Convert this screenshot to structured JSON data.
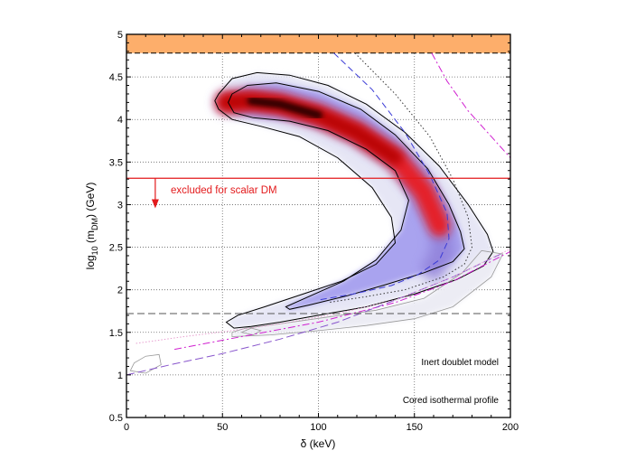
{
  "chart_data": {
    "type": "contour",
    "title": "",
    "xlabel": "δ (keV)",
    "ylabel_parts": {
      "pre": "log",
      "sub1": "10",
      "mid": " (m",
      "sub2": "DM",
      "post": ") (GeV)"
    },
    "xlim": [
      0,
      200
    ],
    "ylim": [
      0.5,
      5
    ],
    "xticks": [
      "0",
      "50",
      "100",
      "150",
      "200"
    ],
    "xtick_values": [
      0,
      50,
      100,
      150,
      200
    ],
    "yticks": [
      "0.5",
      "1",
      "1.5",
      "2",
      "2.5",
      "3",
      "3.5",
      "4",
      "4.5",
      "5"
    ],
    "ytick_values": [
      0.5,
      1,
      1.5,
      2,
      2.5,
      3,
      3.5,
      4,
      4.5,
      5
    ],
    "grid": true,
    "excluded_band": {
      "ymin": 4.78,
      "ymax": 5.0,
      "color": "#fdae6b"
    },
    "scalar_limit": {
      "y": 3.31,
      "label": "excluded for scalar DM",
      "arrow_x": 15,
      "arrow_to_y": 3.0,
      "color": "#e31a1c"
    },
    "lower_dashed_line": {
      "y": 1.72
    },
    "annotations": [
      "Inert doublet model",
      "Cored isothermal profile"
    ],
    "contours": {
      "outer": [
        [
          48,
          4.3
        ],
        [
          55,
          4.48
        ],
        [
          68,
          4.55
        ],
        [
          85,
          4.52
        ],
        [
          105,
          4.4
        ],
        [
          125,
          4.18
        ],
        [
          145,
          3.85
        ],
        [
          163,
          3.45
        ],
        [
          178,
          3.0
        ],
        [
          188,
          2.65
        ],
        [
          191,
          2.45
        ],
        [
          186,
          2.28
        ],
        [
          172,
          2.12
        ],
        [
          150,
          1.95
        ],
        [
          125,
          1.8
        ],
        [
          100,
          1.7
        ],
        [
          80,
          1.62
        ],
        [
          65,
          1.57
        ],
        [
          56,
          1.55
        ],
        [
          52,
          1.62
        ],
        [
          58,
          1.7
        ],
        [
          72,
          1.8
        ],
        [
          92,
          1.95
        ],
        [
          112,
          2.1
        ],
        [
          130,
          2.3
        ],
        [
          140,
          2.55
        ],
        [
          138,
          2.85
        ],
        [
          128,
          3.2
        ],
        [
          110,
          3.55
        ],
        [
          90,
          3.8
        ],
        [
          70,
          3.92
        ],
        [
          55,
          4.0
        ],
        [
          48,
          4.12
        ],
        [
          46,
          4.22
        ],
        [
          48,
          4.3
        ]
      ],
      "inner": [
        [
          55,
          4.3
        ],
        [
          63,
          4.4
        ],
        [
          78,
          4.43
        ],
        [
          100,
          4.33
        ],
        [
          122,
          4.12
        ],
        [
          140,
          3.82
        ],
        [
          157,
          3.42
        ],
        [
          168,
          3.0
        ],
        [
          174,
          2.68
        ],
        [
          176,
          2.48
        ],
        [
          170,
          2.33
        ],
        [
          155,
          2.2
        ],
        [
          135,
          2.06
        ],
        [
          115,
          1.93
        ],
        [
          95,
          1.82
        ],
        [
          85,
          1.77
        ],
        [
          83,
          1.8
        ],
        [
          95,
          1.92
        ],
        [
          113,
          2.1
        ],
        [
          130,
          2.35
        ],
        [
          143,
          2.7
        ],
        [
          147,
          3.05
        ],
        [
          140,
          3.4
        ],
        [
          125,
          3.65
        ],
        [
          105,
          3.87
        ],
        [
          85,
          3.98
        ],
        [
          66,
          4.02
        ],
        [
          56,
          4.08
        ],
        [
          53,
          4.2
        ],
        [
          55,
          4.3
        ]
      ],
      "lower_thin": [
        [
          2,
          1.05
        ],
        [
          10,
          1.02
        ],
        [
          18,
          1.12
        ],
        [
          17,
          1.24
        ],
        [
          10,
          1.22
        ],
        [
          4,
          1.14
        ],
        [
          2,
          1.05
        ]
      ],
      "tail_thin": [
        [
          55,
          1.45
        ],
        [
          75,
          1.47
        ],
        [
          100,
          1.52
        ],
        [
          125,
          1.58
        ],
        [
          150,
          1.66
        ],
        [
          170,
          1.8
        ],
        [
          190,
          2.15
        ],
        [
          196,
          2.42
        ],
        [
          185,
          2.46
        ],
        [
          175,
          2.2
        ],
        [
          155,
          1.9
        ],
        [
          130,
          1.76
        ],
        [
          105,
          1.68
        ],
        [
          80,
          1.6
        ],
        [
          62,
          1.55
        ],
        [
          55,
          1.5
        ]
      ],
      "tail_inner": [
        [
          60,
          1.5
        ],
        [
          65,
          1.55
        ],
        [
          70,
          1.52
        ],
        [
          66,
          1.47
        ],
        [
          60,
          1.5
        ]
      ]
    },
    "ridge": [
      [
        52,
        4.2
      ],
      [
        65,
        4.22
      ],
      [
        80,
        4.18
      ],
      [
        100,
        4.05
      ],
      [
        120,
        3.85
      ],
      [
        140,
        3.55
      ],
      [
        155,
        3.15
      ],
      [
        163,
        2.75
      ],
      [
        165,
        2.45
      ],
      [
        160,
        2.25
      ],
      [
        145,
        2.1
      ],
      [
        125,
        1.98
      ],
      [
        105,
        1.88
      ],
      [
        85,
        1.8
      ],
      [
        70,
        1.72
      ],
      [
        50,
        1.6
      ],
      [
        30,
        1.52
      ],
      [
        10,
        1.45
      ]
    ],
    "lines": [
      {
        "name": "blue-dashed",
        "color": "#3b3bd6",
        "dash": "7 4",
        "points": [
          [
            108,
            4.78
          ],
          [
            128,
            4.35
          ],
          [
            145,
            3.85
          ],
          [
            158,
            3.35
          ],
          [
            167,
            2.9
          ],
          [
            168,
            2.6
          ],
          [
            163,
            2.35
          ],
          [
            152,
            2.18
          ],
          [
            138,
            2.05
          ],
          [
            118,
            1.95
          ],
          [
            100,
            1.88
          ]
        ]
      },
      {
        "name": "black-dotted",
        "color": "#333333",
        "dash": "1.5 2.5",
        "points": [
          [
            119,
            4.78
          ],
          [
            140,
            4.3
          ],
          [
            158,
            3.8
          ],
          [
            170,
            3.3
          ],
          [
            178,
            2.85
          ],
          [
            180,
            2.5
          ],
          [
            176,
            2.3
          ],
          [
            165,
            2.15
          ],
          [
            145,
            2.0
          ],
          [
            125,
            1.92
          ],
          [
            105,
            1.85
          ]
        ]
      },
      {
        "name": "magenta-dashdot",
        "color": "#d020d0",
        "dash": "8 3 2 3",
        "points": [
          [
            159,
            4.78
          ],
          [
            167,
            4.45
          ],
          [
            178,
            4.1
          ],
          [
            190,
            3.8
          ],
          [
            200,
            3.55
          ]
        ]
      },
      {
        "name": "magenta-dashdot-low",
        "color": "#d020d0",
        "dash": "8 3 2 3",
        "points": [
          [
            25,
            1.3
          ],
          [
            60,
            1.45
          ],
          [
            100,
            1.62
          ],
          [
            140,
            1.85
          ],
          [
            170,
            2.1
          ],
          [
            200,
            2.45
          ]
        ]
      },
      {
        "name": "purple-dashed-low",
        "color": "#8855cc",
        "dash": "9 4",
        "points": [
          [
            0,
            1.0
          ],
          [
            25,
            1.13
          ],
          [
            50,
            1.25
          ],
          [
            80,
            1.42
          ],
          [
            110,
            1.62
          ],
          [
            140,
            1.88
          ],
          [
            170,
            2.15
          ],
          [
            195,
            2.42
          ]
        ]
      },
      {
        "name": "pink-dotted",
        "color": "#e8a0d0",
        "dash": "1.5 2",
        "points": [
          [
            5,
            1.37
          ],
          [
            30,
            1.45
          ],
          [
            55,
            1.52
          ],
          [
            80,
            1.6
          ],
          [
            110,
            1.72
          ],
          [
            140,
            1.88
          ],
          [
            170,
            2.15
          ],
          [
            200,
            2.48
          ]
        ]
      }
    ]
  }
}
